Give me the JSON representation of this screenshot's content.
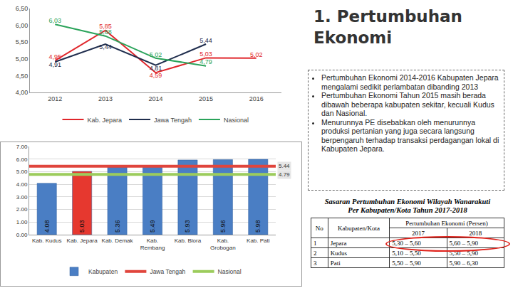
{
  "title": "1. Pertumbuhan Ekonomi",
  "bullets": [
    "Pertumbuhan Ekonomi 2014-2016 Kabupaten Jepara mengalami sedikit perlambatan dibanding 2013",
    "Pertumbuhan Ekonomi Tahun 2015 masih berada dibawah beberapa kabupaten sekitar, kecuali Kudus dan Nasional.",
    "Menurunnya PE disebabkan oleh menurunnya produksi pertanian yang juga secara langsung berpengaruh terhadap transaksi perdagangan lokal di Kabupaten Jepara."
  ],
  "table": {
    "title_lines": [
      "Sasaran Pertumbuhan Ekonomi Wilayah Wanarakuti",
      "Per Kabupaten/Kota Tahun 2017-2018"
    ],
    "header": [
      "No",
      "Kabupaten/Kota",
      "Pertumbuhan Ekonomi (Persen)"
    ],
    "subheader": [
      "2017",
      "2018"
    ],
    "rows": [
      [
        1,
        "Jepara",
        "5,30 – 5,60",
        "5,60 – 5,90"
      ],
      [
        2,
        "Kudus",
        "5,10 – 5,50",
        "5,50 – 5,90"
      ],
      [
        3,
        "Pati",
        "5,50 – 5,90",
        "5,90 – 6,30"
      ]
    ]
  },
  "chart_data": [
    {
      "type": "line",
      "categories": [
        "2012",
        "2013",
        "2014",
        "2015",
        "2016"
      ],
      "series": [
        {
          "name": "Kab. Jepara",
          "color": "#e0262b",
          "values": [
            4.95,
            5.85,
            4.59,
            5.03,
            5.02
          ],
          "value_labels": [
            "4,95",
            "5,85",
            "4,59",
            "5,03",
            "5,02"
          ]
        },
        {
          "name": "Jawa Tengah",
          "color": "#1f2d4d",
          "values": [
            4.91,
            5.44,
            4.81,
            5.44,
            null
          ],
          "value_labels": [
            "4,91",
            "5,44",
            "4,81",
            "5,44",
            null
          ]
        },
        {
          "name": "Nasional",
          "color": "#2aa35a",
          "values": [
            6.03,
            5.68,
            5.02,
            4.79,
            null
          ],
          "value_labels": [
            "6,03",
            "5,68",
            "5,02",
            "4,79",
            null
          ]
        }
      ],
      "ylim": [
        4,
        6.5
      ],
      "yticks": [
        {
          "value": 4,
          "label": "4,00"
        },
        {
          "value": 4.5,
          "label": "4,50"
        },
        {
          "value": 5,
          "label": "5,00"
        },
        {
          "value": 5.5,
          "label": "5,50"
        },
        {
          "value": 6,
          "label": "6,00"
        },
        {
          "value": 6.5,
          "label": "6,50"
        }
      ],
      "grid": false,
      "legend": "bottom",
      "data_labels": true
    },
    {
      "type": "bar",
      "categories": [
        "Kab. Kudus",
        "Kab. Jepara",
        "Kab. Demak",
        "Kab. Rembang",
        "Kab. Blora",
        "Kab. Grobogan",
        "Kab. Pati"
      ],
      "series": [
        {
          "name": "Kabupaten",
          "values": [
            4.08,
            5.03,
            5.36,
            5.49,
            5.93,
            5.96,
            5.98
          ],
          "colors": [
            "#4a7ec4",
            "#e6382f",
            "#4a7ec4",
            "#4a7ec4",
            "#4a7ec4",
            "#4a7ec4",
            "#4a7ec4"
          ]
        }
      ],
      "reference_lines": [
        {
          "name": "Jawa Tengah",
          "value": 5.44,
          "color": "#e0453c"
        },
        {
          "name": "Nasional",
          "value": 4.79,
          "color": "#9ccc5c"
        }
      ],
      "ylim": [
        0,
        7
      ],
      "yticks": [
        {
          "value": 0,
          "label": "0.00"
        },
        {
          "value": 1,
          "label": "1.00"
        },
        {
          "value": 2,
          "label": "2.00"
        },
        {
          "value": 3,
          "label": "3.00"
        },
        {
          "value": 4,
          "label": "4.00"
        },
        {
          "value": 5,
          "label": "5.00"
        },
        {
          "value": 6,
          "label": "6.00"
        },
        {
          "value": 7,
          "label": "7.00"
        }
      ],
      "grid": true,
      "legend": "bottom",
      "data_labels": true
    }
  ]
}
